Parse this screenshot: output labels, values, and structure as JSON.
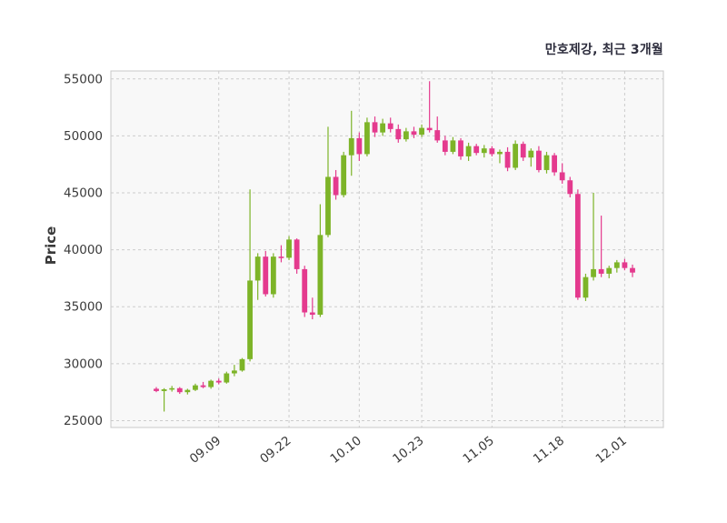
{
  "chart_data": {
    "type": "candlestick",
    "title": "만호제강, 최근 3개월",
    "ylabel": "Price",
    "ylim": [
      24400,
      55700
    ],
    "yticks": [
      25000,
      30000,
      35000,
      40000,
      45000,
      50000,
      55000
    ],
    "xticks": [
      {
        "index": 8,
        "label": "09.09"
      },
      {
        "index": 17,
        "label": "09.22"
      },
      {
        "index": 26,
        "label": "10.10"
      },
      {
        "index": 34,
        "label": "10.23"
      },
      {
        "index": 43,
        "label": "11.05"
      },
      {
        "index": 52,
        "label": "11.18"
      },
      {
        "index": 60,
        "label": "12.01"
      }
    ],
    "grid": true,
    "legend": "none",
    "up_color": "#7db428",
    "down_color": "#e43a8e",
    "grid_color": "#cccccc",
    "border_color": "#c8c8c8",
    "plot_bg": "#f8f8f8",
    "tick_color": "#3a3a3a",
    "candle_format": [
      "open",
      "high",
      "low",
      "close"
    ],
    "candles": [
      [
        27800,
        27950,
        27500,
        27600
      ],
      [
        27600,
        27850,
        25800,
        27750
      ],
      [
        27750,
        28050,
        27550,
        27850
      ],
      [
        27850,
        27950,
        27350,
        27500
      ],
      [
        27500,
        27800,
        27300,
        27700
      ],
      [
        27700,
        28250,
        27600,
        28100
      ],
      [
        28100,
        28400,
        27850,
        27950
      ],
      [
        27950,
        28600,
        27800,
        28500
      ],
      [
        28500,
        28700,
        28200,
        28350
      ],
      [
        28350,
        29300,
        28250,
        29150
      ],
      [
        29150,
        29900,
        28900,
        29400
      ],
      [
        29400,
        30500,
        29300,
        30400
      ],
      [
        30400,
        45300,
        30200,
        37300
      ],
      [
        37300,
        39700,
        35600,
        39400
      ],
      [
        39400,
        39900,
        35900,
        36100
      ],
      [
        36100,
        39700,
        35800,
        39400
      ],
      [
        39400,
        40400,
        38900,
        39300
      ],
      [
        39300,
        41200,
        39100,
        40900
      ],
      [
        40900,
        41000,
        37900,
        38300
      ],
      [
        38300,
        38600,
        34100,
        34500
      ],
      [
        34500,
        35800,
        33900,
        34300
      ],
      [
        34300,
        44000,
        34100,
        41300
      ],
      [
        41300,
        50800,
        41100,
        46400
      ],
      [
        46400,
        47000,
        44400,
        44800
      ],
      [
        44800,
        48600,
        44600,
        48300
      ],
      [
        48300,
        52200,
        46500,
        49800
      ],
      [
        49800,
        50300,
        47800,
        48400
      ],
      [
        48400,
        51600,
        48200,
        51200
      ],
      [
        51200,
        51700,
        49900,
        50300
      ],
      [
        50300,
        51500,
        50000,
        51100
      ],
      [
        51100,
        51600,
        50300,
        50600
      ],
      [
        50600,
        51000,
        49400,
        49700
      ],
      [
        49700,
        50700,
        49500,
        50400
      ],
      [
        50400,
        50800,
        49800,
        50100
      ],
      [
        50100,
        51000,
        49900,
        50700
      ],
      [
        50700,
        54800,
        50300,
        50500
      ],
      [
        50500,
        51700,
        49400,
        49600
      ],
      [
        49600,
        50000,
        48300,
        48600
      ],
      [
        48600,
        49900,
        48400,
        49600
      ],
      [
        49600,
        49800,
        47900,
        48200
      ],
      [
        48200,
        49400,
        47800,
        49100
      ],
      [
        49100,
        49300,
        48300,
        48500
      ],
      [
        48500,
        49200,
        48100,
        48900
      ],
      [
        48900,
        49100,
        48200,
        48400
      ],
      [
        48400,
        48800,
        47600,
        48600
      ],
      [
        48600,
        49000,
        46900,
        47200
      ],
      [
        47200,
        49600,
        47000,
        49300
      ],
      [
        49300,
        49500,
        47800,
        48100
      ],
      [
        48100,
        48900,
        47300,
        48700
      ],
      [
        48700,
        49100,
        46800,
        47000
      ],
      [
        47000,
        48600,
        46700,
        48300
      ],
      [
        48300,
        48500,
        46500,
        46800
      ],
      [
        46800,
        47600,
        45800,
        46100
      ],
      [
        46100,
        46400,
        44600,
        44900
      ],
      [
        44900,
        45300,
        35600,
        35800
      ],
      [
        35800,
        37900,
        35500,
        37600
      ],
      [
        37600,
        45000,
        37300,
        38300
      ],
      [
        38300,
        43000,
        37600,
        37900
      ],
      [
        37900,
        38600,
        37500,
        38400
      ],
      [
        38400,
        39100,
        38000,
        38900
      ],
      [
        38900,
        39200,
        38200,
        38400
      ],
      [
        38400,
        38700,
        37600,
        38000
      ]
    ]
  }
}
